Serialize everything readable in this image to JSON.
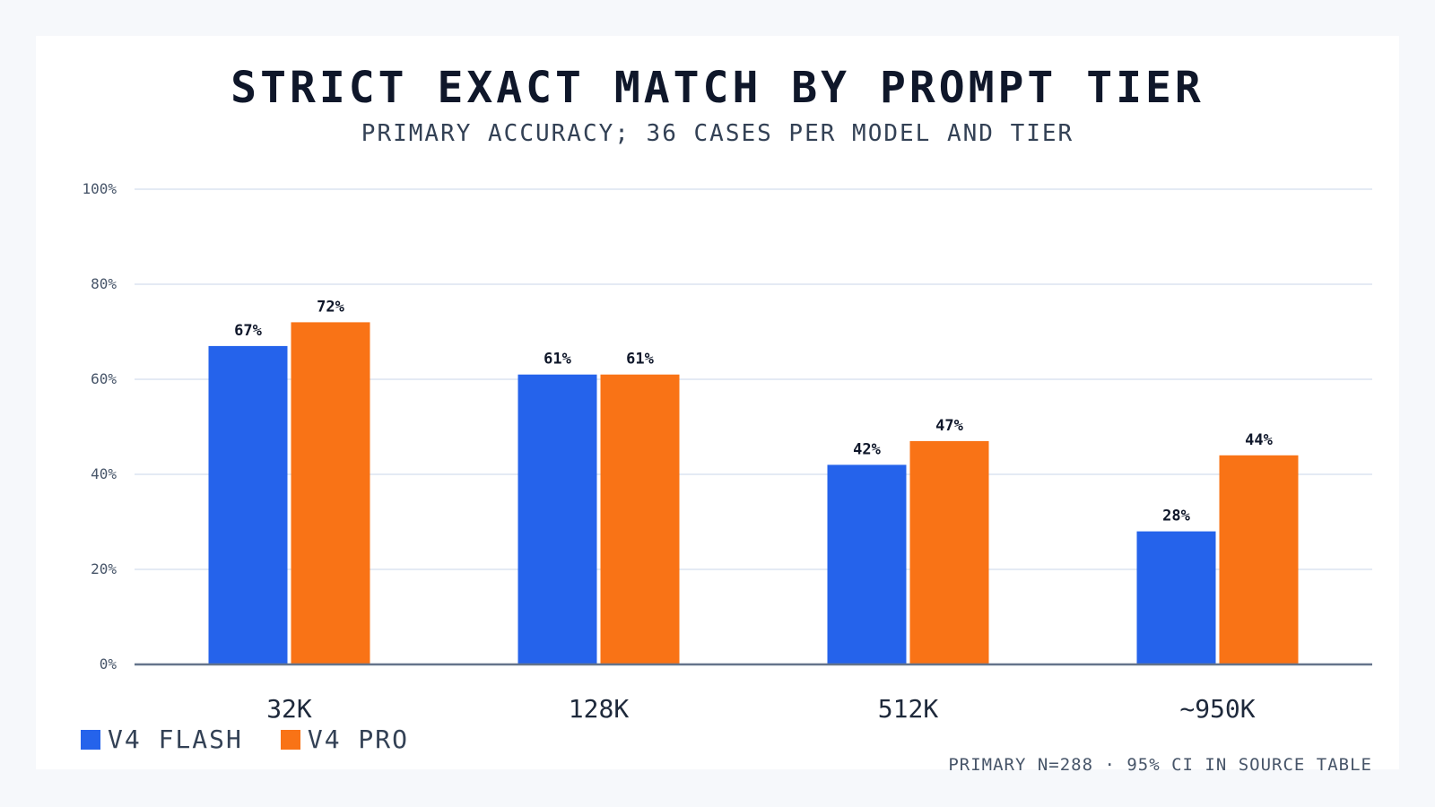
{
  "chart_data": {
    "type": "bar",
    "title": "STRICT EXACT MATCH BY PROMPT TIER",
    "subtitle": "PRIMARY ACCURACY; 36 CASES PER MODEL AND TIER",
    "categories": [
      "32K",
      "128K",
      "512K",
      "~950K"
    ],
    "series": [
      {
        "name": "V4 FLASH",
        "color": "#2563eb",
        "values": [
          67,
          61,
          42,
          28
        ],
        "labels": [
          "67%",
          "61%",
          "42%",
          "28%"
        ]
      },
      {
        "name": "V4 PRO",
        "color": "#f97316",
        "values": [
          72,
          61,
          47,
          44
        ],
        "labels": [
          "72%",
          "61%",
          "47%",
          "44%"
        ]
      }
    ],
    "ylim": [
      0,
      100
    ],
    "yticks": [
      0,
      20,
      40,
      60,
      80,
      100
    ],
    "ytick_labels": [
      "0%",
      "20%",
      "40%",
      "60%",
      "80%",
      "100%"
    ],
    "grid": true,
    "legend_position": "bottom-left",
    "footnote": "PRIMARY N=288 · 95% CI IN SOURCE TABLE"
  },
  "colors": {
    "gridline": "#dbe4f0",
    "axis": "#64748b",
    "tick_label": "#475569",
    "category_label": "#1e293b",
    "data_label": "#0f172a"
  }
}
